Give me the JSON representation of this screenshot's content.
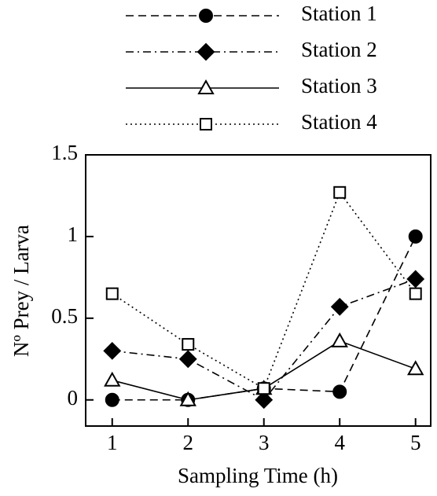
{
  "chart_data": {
    "type": "line",
    "x_label": "Sampling Time (h)",
    "y_label": "Nº Prey / Larva",
    "x": [
      1,
      2,
      3,
      4,
      5
    ],
    "series": [
      {
        "name": "Station 1",
        "color": "#000000",
        "line": "dashed",
        "marker": "circle",
        "filled": true,
        "values": [
          0,
          0,
          0.07,
          0.05,
          1.0
        ]
      },
      {
        "name": "Station 2",
        "color": "#000000",
        "line": "dashdot",
        "marker": "diamond",
        "filled": true,
        "values": [
          0.3,
          0.25,
          0,
          0.57,
          0.74
        ]
      },
      {
        "name": "Station 3",
        "color": "#000000",
        "line": "solid",
        "marker": "triangle",
        "filled": false,
        "values": [
          0.12,
          0,
          0.07,
          0.36,
          0.19
        ]
      },
      {
        "name": "Station 4",
        "color": "#000000",
        "line": "dotted",
        "marker": "square",
        "filled": false,
        "values": [
          0.65,
          0.34,
          0.07,
          1.27,
          0.65
        ]
      }
    ],
    "xlim": [
      0.65,
      5.2
    ],
    "xticks": [
      1,
      2,
      3,
      4,
      5
    ],
    "ylim": [
      -0.16,
      1.5
    ],
    "yticks": [
      0,
      0.5,
      1,
      1.5
    ],
    "legend": "top"
  }
}
